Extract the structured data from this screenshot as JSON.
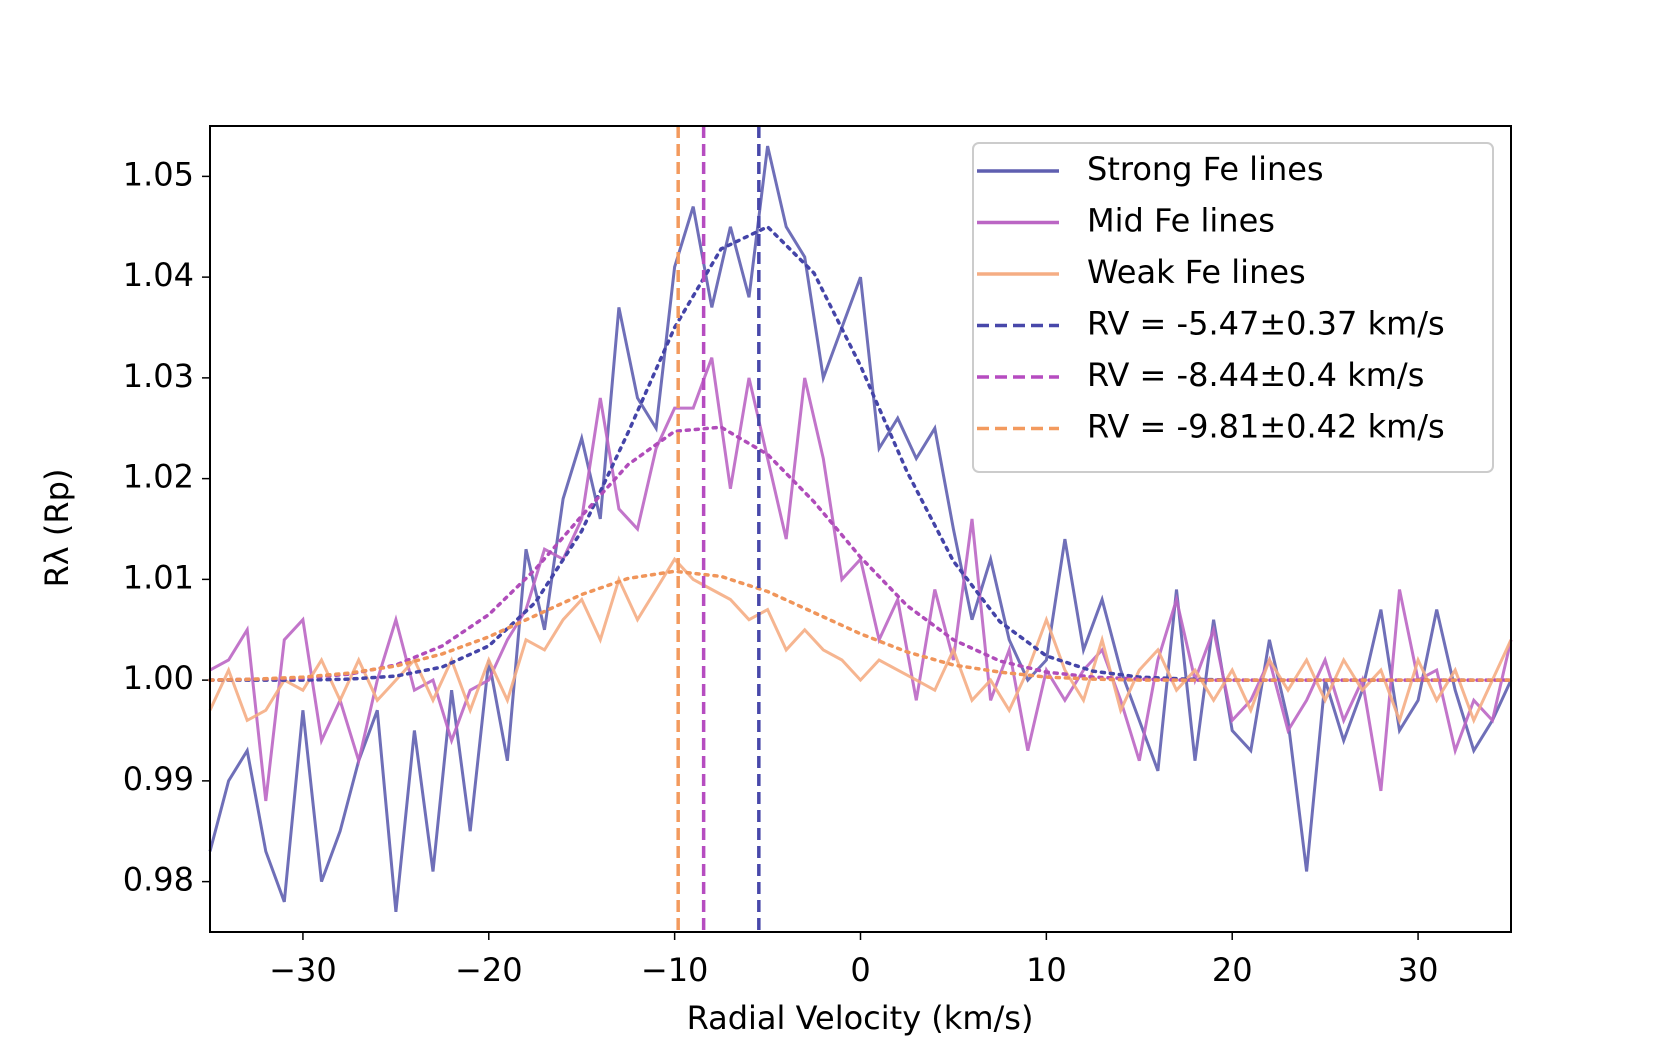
{
  "chart_data": {
    "type": "line",
    "xlabel": "Radial Velocity (km/s)",
    "ylabel": "Rλ (Rp)",
    "xlim": [
      -35,
      35
    ],
    "ylim": [
      0.975,
      1.055
    ],
    "xticks": [
      {
        "value": -30,
        "label": "−30"
      },
      {
        "value": -20,
        "label": "−20"
      },
      {
        "value": -10,
        "label": "−10"
      },
      0,
      10,
      20,
      30
    ],
    "yticks": [
      0.98,
      0.99,
      {
        "value": 1,
        "label": "1.00"
      },
      1.01,
      1.02,
      1.03,
      1.04,
      1.05
    ],
    "legend": "upper right",
    "x": [
      -35,
      -34,
      -33,
      -32,
      -31,
      -30,
      -29,
      -28,
      -27,
      -26,
      -25,
      -24,
      -23,
      -22,
      -21,
      -20,
      -19,
      -18,
      -17,
      -16,
      -15,
      -14,
      -13,
      -12,
      -11,
      -10,
      -9,
      -8,
      -7,
      -6,
      -5,
      -4,
      -3,
      -2,
      -1,
      0,
      1,
      2,
      3,
      4,
      5,
      6,
      7,
      8,
      9,
      10,
      11,
      12,
      13,
      14,
      15,
      16,
      17,
      18,
      19,
      20,
      21,
      22,
      23,
      24,
      25,
      26,
      27,
      28,
      29,
      30,
      31,
      32,
      33,
      34,
      35
    ],
    "series": [
      {
        "name": "Strong Fe lines",
        "color": "#5f5fb0",
        "values": [
          0.983,
          0.99,
          0.993,
          0.983,
          0.978,
          0.997,
          0.98,
          0.985,
          0.992,
          0.997,
          0.977,
          0.995,
          0.981,
          0.999,
          0.985,
          1.002,
          0.992,
          1.013,
          1.005,
          1.018,
          1.024,
          1.016,
          1.037,
          1.028,
          1.025,
          1.041,
          1.047,
          1.037,
          1.045,
          1.038,
          1.053,
          1.045,
          1.042,
          1.03,
          1.035,
          1.04,
          1.023,
          1.026,
          1.022,
          1.025,
          1.015,
          1.006,
          1.012,
          1.004,
          1.0,
          1.002,
          1.014,
          1.003,
          1.008,
          1.001,
          0.996,
          0.991,
          1.009,
          0.992,
          1.006,
          0.995,
          0.993,
          1.004,
          0.996,
          0.981,
          1.0,
          0.994,
          0.999,
          1.007,
          0.995,
          0.998,
          1.007,
          0.999,
          0.993,
          0.996,
          1.0
        ]
      },
      {
        "name": "Mid Fe lines",
        "color": "#bb66c4",
        "values": [
          1.001,
          1.002,
          1.005,
          0.988,
          1.004,
          1.006,
          0.994,
          0.998,
          0.992,
          1.0,
          1.006,
          0.999,
          1.0,
          0.994,
          0.999,
          1.0,
          1.004,
          1.007,
          1.013,
          1.012,
          1.016,
          1.028,
          1.017,
          1.015,
          1.023,
          1.027,
          1.027,
          1.032,
          1.019,
          1.03,
          1.022,
          1.014,
          1.03,
          1.022,
          1.01,
          1.012,
          1.004,
          1.008,
          0.998,
          1.009,
          1.002,
          1.016,
          0.998,
          1.003,
          0.993,
          1.001,
          0.998,
          1.001,
          1.003,
          0.998,
          0.992,
          1.002,
          1.008,
          1.0,
          1.005,
          0.996,
          0.998,
          1.002,
          0.995,
          0.998,
          1.002,
          0.996,
          1.0,
          0.989,
          1.009,
          1.0,
          1.001,
          0.993,
          0.998,
          0.996,
          1.004
        ]
      },
      {
        "name": "Weak Fe lines",
        "color": "#f5ad84",
        "values": [
          0.997,
          1.001,
          0.996,
          0.997,
          1.0,
          0.999,
          1.002,
          0.998,
          1.002,
          0.998,
          1.0,
          1.002,
          0.998,
          1.002,
          0.997,
          1.002,
          0.998,
          1.004,
          1.003,
          1.006,
          1.008,
          1.004,
          1.01,
          1.006,
          1.009,
          1.012,
          1.01,
          1.009,
          1.008,
          1.006,
          1.007,
          1.003,
          1.005,
          1.003,
          1.002,
          1.0,
          1.002,
          1.001,
          1.0,
          0.999,
          1.003,
          0.998,
          1.0,
          0.997,
          1.001,
          1.006,
          1.001,
          0.998,
          1.004,
          0.997,
          1.001,
          1.003,
          0.999,
          1.001,
          0.998,
          1.001,
          0.997,
          1.002,
          0.999,
          1.002,
          0.998,
          1.002,
          0.999,
          1.001,
          0.996,
          1.002,
          0.998,
          1.001,
          0.996,
          1.0,
          1.004
        ]
      }
    ],
    "fit_x": [
      -35,
      -32.5,
      -30,
      -27.5,
      -25,
      -22.5,
      -20,
      -17.5,
      -15,
      -12.5,
      -10,
      -7.5,
      -5,
      -2.5,
      0,
      2.5,
      5,
      7.5,
      10,
      12.5,
      15,
      17.5,
      20,
      22.5,
      25,
      27.5,
      30,
      32.5,
      35
    ],
    "fits": [
      {
        "color": "#4444a8",
        "values": [
          1.0,
          1.0,
          1.0,
          1.0001,
          1.0004,
          1.0013,
          1.0034,
          1.0077,
          1.0148,
          1.0246,
          1.035,
          1.0428,
          1.045,
          1.0404,
          1.0312,
          1.0207,
          1.0118,
          1.0058,
          1.0024,
          1.0009,
          1.0003,
          1.0001,
          1.0,
          1.0,
          1.0,
          1.0,
          1.0,
          1.0,
          1.0
        ]
      },
      {
        "color": "#b04cba",
        "values": [
          1.0,
          1.0001,
          1.0002,
          1.0006,
          1.0015,
          1.0034,
          1.0065,
          1.011,
          1.0163,
          1.0214,
          1.0247,
          1.0251,
          1.0224,
          1.0177,
          1.0122,
          1.0074,
          1.004,
          1.0019,
          1.0008,
          1.0003,
          1.0001,
          1.0,
          1.0,
          1.0,
          1.0,
          1.0,
          1.0,
          1.0,
          1.0
        ]
      },
      {
        "color": "#f0955a",
        "values": [
          1.0,
          1.0001,
          1.0003,
          1.0007,
          1.0014,
          1.0026,
          1.0043,
          1.0064,
          1.0085,
          1.0101,
          1.0108,
          1.0103,
          1.0088,
          1.0067,
          1.0046,
          1.0028,
          1.0015,
          1.0008,
          1.0003,
          1.0001,
          1.0,
          1.0,
          1.0,
          1.0,
          1.0,
          1.0,
          1.0,
          1.0,
          1.0
        ]
      }
    ],
    "vlines": [
      {
        "name": "RV = -5.47±0.37 km/s",
        "color": "#4848aa",
        "x": -5.47
      },
      {
        "name": "RV = -8.44±0.4 km/s",
        "color": "#b64cc0",
        "x": -8.44
      },
      {
        "name": "RV = -9.81±0.42 km/s",
        "color": "#f39a5e",
        "x": -9.81
      }
    ]
  }
}
